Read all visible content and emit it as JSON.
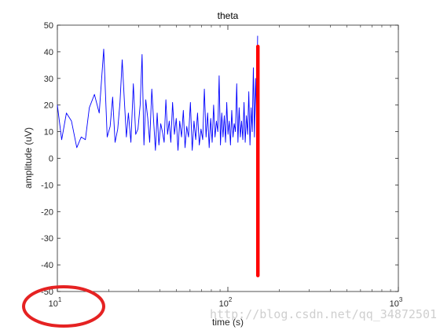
{
  "chart_data": {
    "type": "line",
    "title": "theta",
    "xlabel": "time (s)",
    "ylabel": "amplitude (uV)",
    "xscale": "log",
    "xlim": [
      10,
      1000
    ],
    "ylim": [
      -50,
      50
    ],
    "grid": false,
    "legend": "none",
    "x_tick_labels": [
      {
        "value": 10,
        "base": "10",
        "exp": "1"
      },
      {
        "value": 100,
        "base": "10",
        "exp": "2"
      },
      {
        "value": 1000,
        "base": "10",
        "exp": "3"
      }
    ],
    "y_tick_labels": [
      "50",
      "40",
      "30",
      "20",
      "10",
      "0",
      "-10",
      "-20",
      "-30",
      "-40",
      "-50"
    ],
    "series": [
      {
        "color": "#0000ff",
        "x": [
          10,
          10.6,
          11.3,
          12.1,
          13.0,
          13.8,
          14.6,
          15.4,
          16.5,
          17.6,
          18.7,
          19.6,
          20.4,
          21.1,
          21.8,
          22.6,
          23.3,
          24.0,
          24.7,
          25.4,
          26.1,
          27.0,
          27.9,
          28.8,
          29.7,
          30.6,
          31.4,
          32.2,
          33.0,
          33.9,
          34.8,
          35.8,
          36.7,
          37.6,
          38.5,
          39.4,
          40.4,
          41.3,
          42.3,
          43.3,
          44.3,
          45.3,
          46.3,
          47.4,
          48.6,
          49.8,
          51.0,
          52.2,
          53.5,
          54.8,
          56.1,
          57.4,
          58.8,
          60.3,
          61.8,
          63.3,
          64.8,
          66.4,
          68.0,
          69.6,
          71.2,
          72.8,
          74.5,
          76.1,
          77.7,
          79.3,
          80.9,
          82.5,
          84.1,
          85.7,
          87.3,
          88.9,
          90.5,
          92.1,
          93.7,
          95.3,
          96.9,
          98.5,
          100.2,
          101.9,
          103.6,
          105.4,
          107.2,
          109.0,
          110.8,
          112.7,
          114.6,
          116.5,
          118.4,
          120.4,
          122.4,
          124.4,
          126.4,
          128.5,
          130.6,
          132.7,
          134.8,
          136.9,
          139.0,
          141.1,
          143.2,
          145.3,
          147.4,
          149.5
        ],
        "y": [
          20,
          7,
          17,
          14,
          4,
          8,
          7,
          19,
          24,
          17,
          41,
          8,
          12,
          23,
          6,
          11,
          21,
          37,
          22,
          8,
          17,
          6,
          28,
          9,
          11,
          20,
          39,
          5,
          22,
          15,
          6,
          26,
          14,
          3,
          17,
          5,
          13,
          10,
          6,
          22,
          9,
          14,
          6,
          21,
          9,
          15,
          3,
          14,
          8,
          18,
          4,
          12,
          8,
          21,
          3,
          14,
          7,
          17,
          5,
          11,
          7,
          26,
          8,
          17,
          4,
          15,
          6,
          20,
          8,
          14,
          10,
          31,
          5,
          17,
          8,
          16,
          6,
          21,
          9,
          14,
          5,
          18,
          8,
          13,
          10,
          28,
          6,
          19,
          8,
          14,
          7,
          21,
          6,
          16,
          9,
          25,
          5,
          19,
          10,
          34,
          8,
          30,
          14,
          46
        ]
      }
    ],
    "annotations": [
      {
        "kind": "vertical-line",
        "color": "#ff0000",
        "x": 150,
        "y_from": -44,
        "y_to": 42
      },
      {
        "kind": "ellipse",
        "color": "#e52222",
        "around": "x-tick 10^1"
      }
    ]
  },
  "watermark": "http://blog.csdn.net/qq_34872501"
}
